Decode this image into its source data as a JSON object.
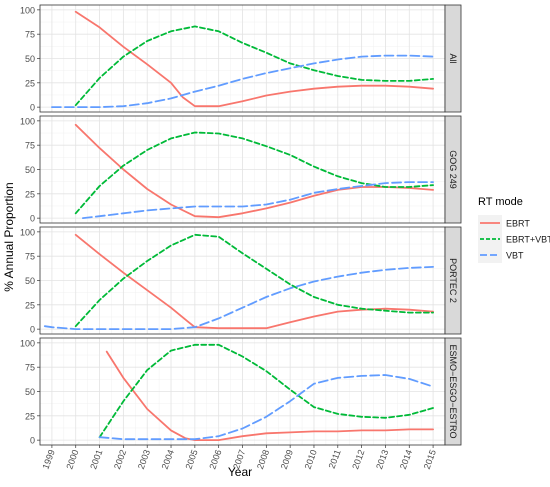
{
  "chart_data": {
    "type": "line",
    "xlabel": "Year",
    "ylabel": "% Annual Proportion",
    "x_ticks": [
      "1999",
      "2000",
      "2001",
      "2002",
      "2003",
      "2004",
      "2005",
      "2006",
      "2007",
      "2008",
      "2009",
      "2010",
      "2011",
      "2012",
      "2013",
      "2014",
      "2015"
    ],
    "xlim": [
      1998.5,
      2015.5
    ],
    "ylim": [
      -5,
      105
    ],
    "y_ticks": [
      0,
      25,
      50,
      75,
      100
    ],
    "grid": true,
    "legend": {
      "title": "RT mode",
      "position": "right",
      "entries": [
        {
          "name": "EBRT",
          "color": "#f8766d",
          "dash": "solid"
        },
        {
          "name": "EBRT+VBT",
          "color": "#00ba38",
          "dash": "dashed"
        },
        {
          "name": "VBT",
          "color": "#619cff",
          "dash": "longdash"
        }
      ]
    },
    "panels": [
      {
        "strip": "All",
        "series": [
          {
            "name": "EBRT",
            "color": "#f8766d",
            "x": [
              2000,
              2001,
              2002,
              2003,
              2004,
              2004.5,
              2005,
              2006,
              2007,
              2008,
              2009,
              2010,
              2011,
              2012,
              2013,
              2014,
              2015
            ],
            "y": [
              98,
              82,
              62,
              44,
              25,
              10,
              1,
              1,
              6,
              12,
              16,
              19,
              21,
              22,
              22,
              21,
              19
            ]
          },
          {
            "name": "EBRT+VBT",
            "color": "#00ba38",
            "x": [
              2000,
              2001,
              2002,
              2003,
              2004,
              2005,
              2006,
              2007,
              2008,
              2009,
              2010,
              2011,
              2012,
              2013,
              2014,
              2015
            ],
            "y": [
              2,
              30,
              52,
              68,
              78,
              83,
              78,
              66,
              56,
              45,
              38,
              32,
              28,
              27,
              27,
              29
            ]
          },
          {
            "name": "VBT",
            "color": "#619cff",
            "x": [
              1999,
              2000,
              2001,
              2002,
              2003,
              2004,
              2005,
              2006,
              2007,
              2008,
              2009,
              2010,
              2011,
              2012,
              2013,
              2014,
              2015
            ],
            "y": [
              0,
              0,
              0,
              1,
              4,
              9,
              16,
              22,
              29,
              35,
              40,
              45,
              49,
              52,
              53,
              53,
              52
            ]
          }
        ]
      },
      {
        "strip": "GOG 249",
        "series": [
          {
            "name": "EBRT",
            "color": "#f8766d",
            "x": [
              2000,
              2001,
              2002,
              2003,
              2004,
              2005,
              2006,
              2007,
              2008,
              2009,
              2010,
              2011,
              2012,
              2013,
              2014,
              2015
            ],
            "y": [
              96,
              72,
              50,
              30,
              14,
              2,
              1,
              5,
              10,
              16,
              23,
              29,
              32,
              32,
              31,
              29
            ]
          },
          {
            "name": "EBRT+VBT",
            "color": "#00ba38",
            "x": [
              2000,
              2001,
              2002,
              2003,
              2004,
              2005,
              2006,
              2007,
              2008,
              2009,
              2010,
              2011,
              2012,
              2013,
              2014,
              2015
            ],
            "y": [
              5,
              33,
              54,
              70,
              82,
              88,
              87,
              82,
              74,
              65,
              53,
              43,
              36,
              32,
              32,
              34
            ]
          },
          {
            "name": "VBT",
            "color": "#619cff",
            "x": [
              2000.3,
              2001,
              2002,
              2003,
              2004,
              2005,
              2006,
              2007,
              2008,
              2009,
              2010,
              2011,
              2012,
              2013,
              2014,
              2015
            ],
            "y": [
              0,
              2,
              5,
              8,
              10,
              12,
              12,
              12,
              14,
              19,
              26,
              30,
              33,
              36,
              37,
              37
            ]
          }
        ]
      },
      {
        "strip": "PORTEC 2",
        "series": [
          {
            "name": "EBRT",
            "color": "#f8766d",
            "x": [
              2000,
              2001,
              2002,
              2003,
              2004,
              2004.7,
              2005,
              2006,
              2007,
              2008,
              2009,
              2010,
              2011,
              2012,
              2013,
              2014,
              2015
            ],
            "y": [
              97,
              77,
              58,
              40,
              22,
              8,
              2,
              1,
              1,
              1,
              7,
              13,
              18,
              20,
              21,
              20,
              18
            ]
          },
          {
            "name": "EBRT+VBT",
            "color": "#00ba38",
            "x": [
              2000,
              2001,
              2002,
              2003,
              2004,
              2005,
              2006,
              2007,
              2008,
              2009,
              2010,
              2011,
              2012,
              2013,
              2014,
              2015
            ],
            "y": [
              3,
              30,
              52,
              70,
              86,
              97,
              95,
              78,
              62,
              46,
              33,
              25,
              21,
              19,
              17,
              17
            ]
          },
          {
            "name": "VBT",
            "color": "#619cff",
            "x": [
              1998.7,
              1999,
              2000,
              2001,
              2002,
              2003,
              2004,
              2005,
              2006,
              2007,
              2008,
              2009,
              2010,
              2011,
              2012,
              2013,
              2014,
              2015
            ],
            "y": [
              3,
              2,
              0,
              0,
              0,
              0,
              0,
              2,
              11,
              22,
              33,
              42,
              49,
              54,
              58,
              61,
              63,
              64
            ]
          }
        ]
      },
      {
        "strip": "ESMO−ESGO−ESTRO",
        "series": [
          {
            "name": "EBRT",
            "color": "#f8766d",
            "x": [
              2001.3,
              2002,
              2003,
              2004,
              2004.6,
              2005,
              2006,
              2007,
              2008,
              2009,
              2010,
              2011,
              2012,
              2013,
              2014,
              2015
            ],
            "y": [
              91,
              64,
              32,
              10,
              2,
              0,
              0,
              4,
              7,
              8,
              9,
              9,
              10,
              10,
              11,
              11
            ]
          },
          {
            "name": "EBRT+VBT",
            "color": "#00ba38",
            "x": [
              2001,
              2002,
              2003,
              2004,
              2005,
              2006,
              2007,
              2008,
              2009,
              2010,
              2011,
              2012,
              2013,
              2014,
              2015
            ],
            "y": [
              3,
              40,
              72,
              92,
              98,
              98,
              86,
              71,
              52,
              34,
              27,
              24,
              23,
              26,
              33
            ]
          },
          {
            "name": "VBT",
            "color": "#619cff",
            "x": [
              2001,
              2002,
              2003,
              2004,
              2005,
              2006,
              2007,
              2008,
              2009,
              2010,
              2011,
              2012,
              2013,
              2014,
              2015
            ],
            "y": [
              3,
              1,
              1,
              1,
              1,
              4,
              12,
              24,
              40,
              58,
              64,
              66,
              67,
              63,
              55
            ]
          }
        ]
      }
    ]
  }
}
